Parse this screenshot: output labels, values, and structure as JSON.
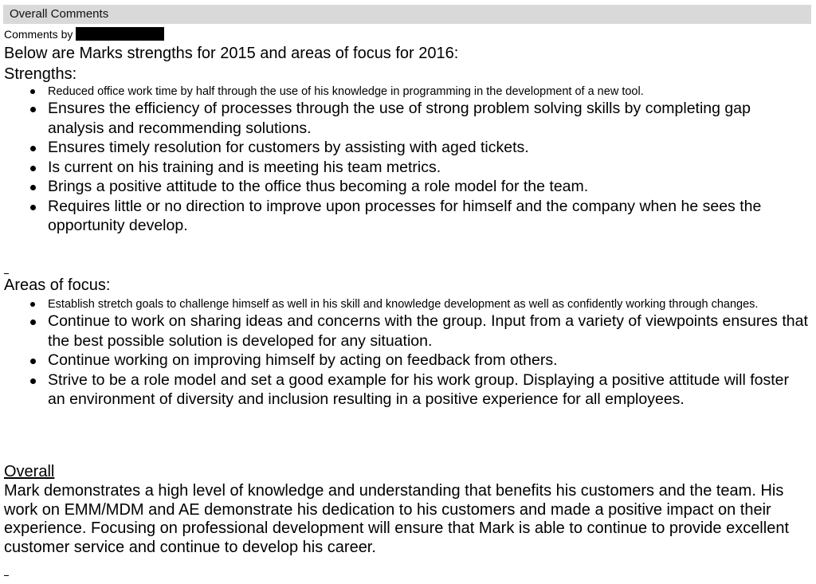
{
  "header": {
    "title": "Overall Comments"
  },
  "comments_by": {
    "label": "Comments by"
  },
  "intro": "Below are Marks strengths for 2015 and areas of focus for 2016:",
  "strengths": {
    "heading": "Strengths:",
    "items": [
      "Reduced office work time by half through the use of his knowledge in programming in the development of a new tool.",
      "Ensures the efficiency of processes through the use of strong problem solving skills by completing gap analysis and recommending solutions.",
      "Ensures timely resolution for customers by assisting with aged tickets.",
      "Is current on his training and is meeting his team metrics.",
      "Brings a positive attitude to the office thus becoming a role model for the team.",
      "Requires little or no direction to improve upon processes for himself and the company when he sees the opportunity develop."
    ]
  },
  "focus": {
    "heading": "Areas of focus:",
    "items": [
      "Establish stretch goals to challenge himself as well in his skill and knowledge development as well as confidently working through changes.",
      "Continue to work on sharing ideas and concerns with the group. Input from a variety of viewpoints ensures that the best possible solution is developed for any situation.",
      "Continue working on improving himself by acting on feedback from others.",
      "Strive to be a role model and set a good example for his work group. Displaying a positive attitude will foster an environment of diversity and inclusion resulting in a positive experience for all employees."
    ]
  },
  "overall": {
    "heading": "Overall",
    "text": "Mark demonstrates a high level of knowledge and understanding that benefits his customers and the team. His work on EMM/MDM and AE demonstrate his dedication to his customers and made a positive impact on their experience. Focusing on professional development will ensure that Mark is able to continue to provide excellent customer service and continue to develop his career."
  }
}
